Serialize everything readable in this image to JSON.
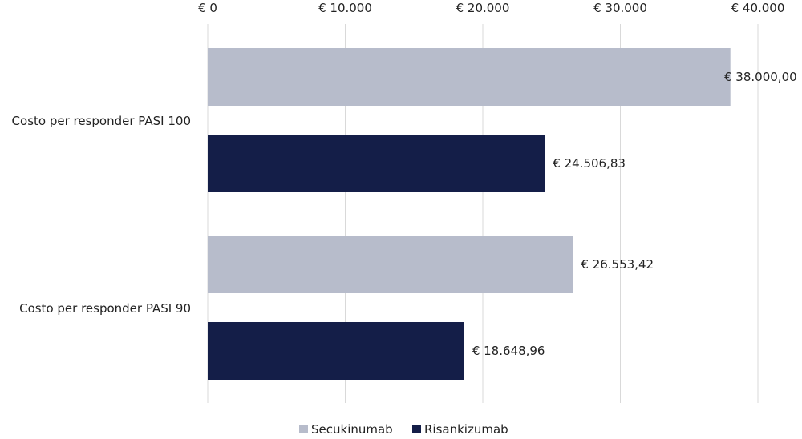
{
  "chart_data": {
    "type": "bar",
    "orientation": "horizontal",
    "categories": [
      "Costo per responder PASI 100",
      "Costo per responder PASI 90"
    ],
    "series": [
      {
        "name": "Secukinumab",
        "color": "#b7bccb",
        "values": [
          38000.0,
          26553.42
        ],
        "labels": [
          "€ 38.000,00",
          "€ 26.553,42"
        ]
      },
      {
        "name": "Risankizumab",
        "color": "#141e48",
        "values": [
          24506.83,
          18648.96
        ],
        "labels": [
          "€ 24.506,83",
          "€ 18.648,96"
        ]
      }
    ],
    "xlim": [
      0,
      40000
    ],
    "x_ticks": [
      0,
      10000,
      20000,
      30000,
      40000
    ],
    "x_tick_labels": [
      "€ 0",
      "€ 10.000",
      "€ 20.000",
      "€ 30.000",
      "€ 40.000"
    ],
    "x_axis_position": "top",
    "grid": "vertical",
    "grid_color": "#d9d9d9",
    "legend": "bottom"
  }
}
